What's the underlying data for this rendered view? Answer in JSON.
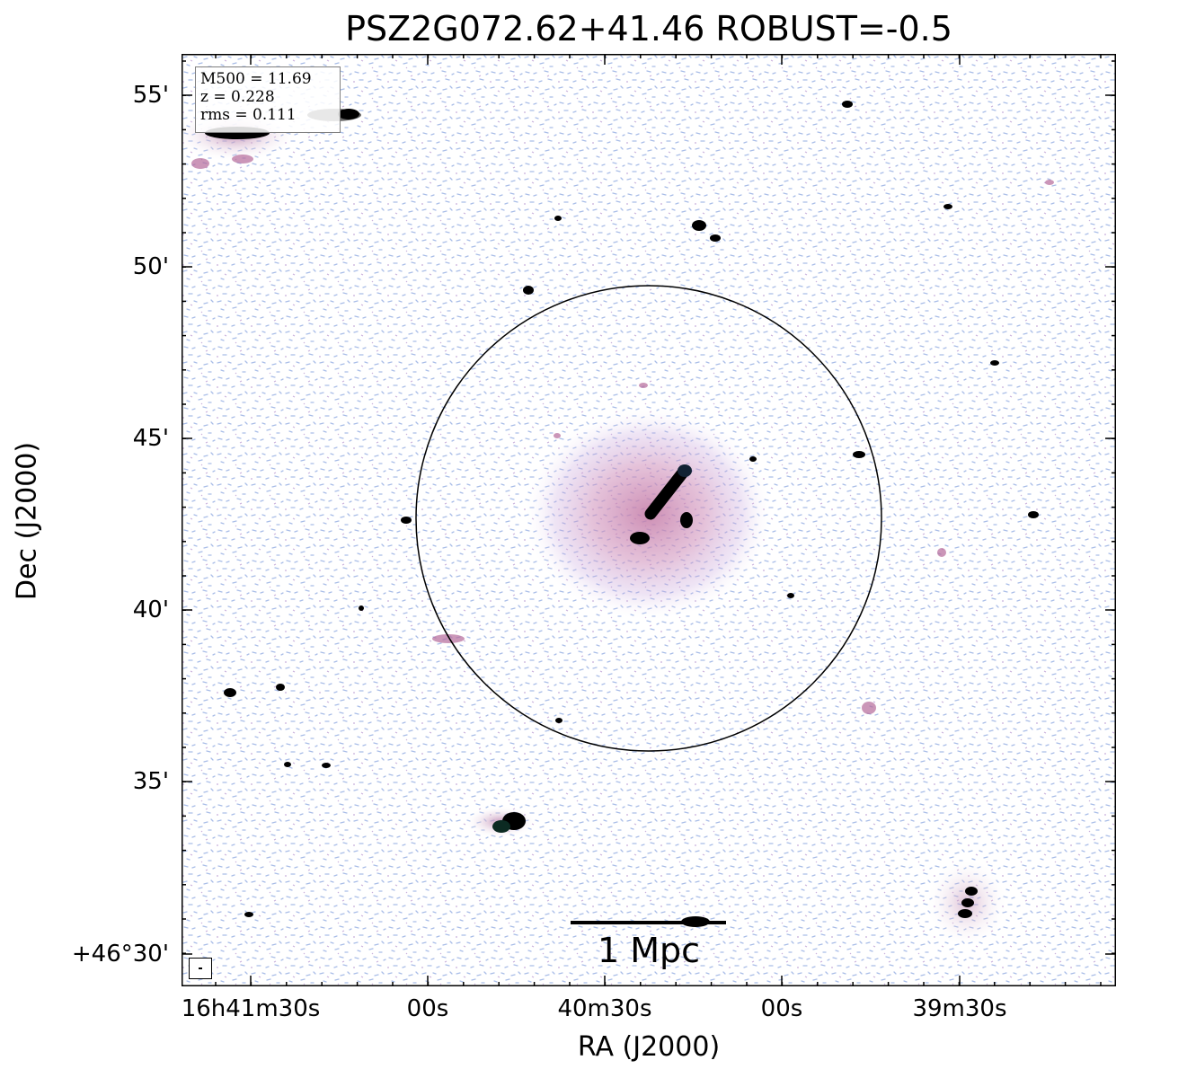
{
  "title": "PSZ2G072.62+41.46 ROBUST=-0.5",
  "axes": {
    "xlabel": "RA (J2000)",
    "ylabel": "Dec (J2000)",
    "x_ticks": [
      "16h41m30s",
      "00s",
      "40m30s",
      "00s",
      "39m30s"
    ],
    "y_ticks": [
      "55'",
      "50'",
      "45'",
      "40'",
      "35'",
      "+46°30'"
    ]
  },
  "info": {
    "m500": "M500 = 11.69",
    "z": "z = 0.228",
    "rms": "rms = 0.111"
  },
  "scalebar": {
    "label": "1 Mpc"
  },
  "colors": {
    "noise_blue": "#9fb4e6",
    "emission_pink": "#c87aa8",
    "source_black": "#000000",
    "frame": "#000000"
  }
}
